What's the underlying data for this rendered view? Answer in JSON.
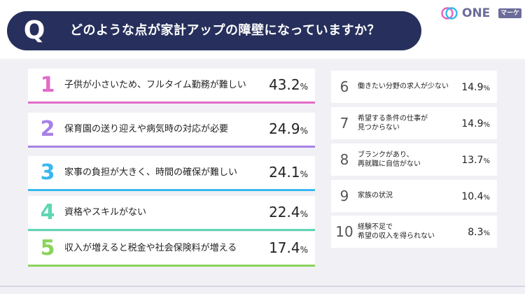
{
  "header": {
    "q_letter": "Q",
    "question": "どのような点が家計アップの障壁になっていますか？",
    "logo_text": "ONE",
    "logo_badge": "マーケ"
  },
  "colors": {
    "question_bg": "#27305c",
    "rank1": "#e26cc8",
    "rank2": "#a781e6",
    "rank3": "#39b8f0",
    "rank4": "#5ed6b2",
    "rank5": "#8bd35a"
  },
  "chart_data": {
    "type": "table",
    "title": "どのような点が家計アップの障壁になっていますか？",
    "unit": "%",
    "items": [
      {
        "rank": "1",
        "label": "子供が小さいため、フルタイム勤務が難しい",
        "value": "43.2"
      },
      {
        "rank": "2",
        "label": "保育園の送り迎えや病気時の対応が必要",
        "value": "24.9"
      },
      {
        "rank": "3",
        "label": "家事の負担が大きく、時間の確保が難しい",
        "value": "24.1"
      },
      {
        "rank": "4",
        "label": "資格やスキルがない",
        "value": "22.4"
      },
      {
        "rank": "5",
        "label": "収入が増えると税金や社会保険料が増える",
        "value": "17.4"
      },
      {
        "rank": "6",
        "label": "働きたい分野の求人が少ない",
        "value": "14.9"
      },
      {
        "rank": "7",
        "label_line1": "希望する条件の仕事が",
        "label_line2": "見つからない",
        "value": "14.9"
      },
      {
        "rank": "8",
        "label_line1": "ブランクがあり、",
        "label_line2": "再就職に自信がない",
        "value": "13.7"
      },
      {
        "rank": "9",
        "label": "家族の状況",
        "value": "10.4"
      },
      {
        "rank": "10",
        "label_line1": "経験不足で",
        "label_line2": "希望の収入を得られない",
        "value": "8.3"
      }
    ]
  }
}
